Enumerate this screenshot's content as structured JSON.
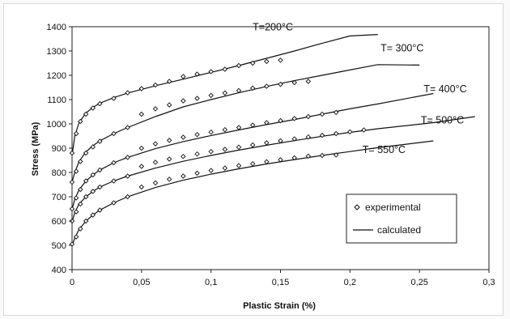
{
  "chart_data": {
    "type": "line",
    "xlabel": "Plastic Strain (%)",
    "ylabel": "Stress (MPa)",
    "xlim": [
      0,
      0.3
    ],
    "ylim": [
      400,
      1400
    ],
    "x_ticks": [
      0,
      0.05,
      0.1,
      0.15,
      0.2,
      0.25,
      0.3
    ],
    "x_tick_labels": [
      "0",
      "0,05",
      "0,1",
      "0,15",
      "0,2",
      "0,25",
      "0,3"
    ],
    "y_ticks": [
      400,
      500,
      600,
      700,
      800,
      900,
      1000,
      1100,
      1200,
      1300,
      1400
    ],
    "y_tick_labels": [
      "400",
      "500",
      "600",
      "700",
      "800",
      "900",
      "1000",
      "1100",
      "1200",
      "1300",
      "1400"
    ],
    "grid": false,
    "legend": {
      "placement": "bottom-right",
      "entries": [
        {
          "label": "experimental",
          "marker": "diamond"
        },
        {
          "label": "calculated",
          "marker": "line"
        }
      ]
    },
    "series": [
      {
        "name": "T=200°C",
        "calculated": {
          "x": [
            0,
            0.002,
            0.005,
            0.01,
            0.015,
            0.02,
            0.03,
            0.04,
            0.06,
            0.08,
            0.1,
            0.12,
            0.14,
            0.16,
            0.18,
            0.2,
            0.22
          ],
          "y": [
            870,
            950,
            1005,
            1045,
            1068,
            1085,
            1108,
            1127,
            1157,
            1184,
            1212,
            1240,
            1270,
            1300,
            1332,
            1362,
            1368
          ]
        },
        "experimental": {
          "x": [
            0,
            0.003,
            0.006,
            0.01,
            0.015,
            0.02,
            0.03,
            0.04,
            0.05,
            0.06,
            0.07,
            0.08,
            0.09,
            0.1,
            0.11,
            0.12,
            0.13,
            0.14,
            0.15
          ],
          "y": [
            880,
            960,
            1010,
            1040,
            1065,
            1083,
            1105,
            1128,
            1145,
            1160,
            1175,
            1195,
            1205,
            1215,
            1225,
            1240,
            1250,
            1257,
            1262
          ]
        }
      },
      {
        "name": "T= 300°C",
        "calculated": {
          "x": [
            0,
            0.002,
            0.005,
            0.01,
            0.015,
            0.02,
            0.03,
            0.04,
            0.06,
            0.08,
            0.1,
            0.12,
            0.14,
            0.16,
            0.18,
            0.2,
            0.22,
            0.25
          ],
          "y": [
            760,
            800,
            845,
            885,
            910,
            930,
            960,
            985,
            1030,
            1070,
            1100,
            1128,
            1154,
            1178,
            1200,
            1222,
            1244,
            1242
          ]
        },
        "experimental": {
          "x": [
            0,
            0.003,
            0.006,
            0.01,
            0.015,
            0.02,
            0.03,
            0.04,
            0.05,
            0.06,
            0.07,
            0.08,
            0.09,
            0.1,
            0.11,
            0.12,
            0.13,
            0.14,
            0.15,
            0.16,
            0.17
          ],
          "y": [
            760,
            805,
            845,
            880,
            905,
            928,
            960,
            985,
            1040,
            1062,
            1078,
            1095,
            1105,
            1117,
            1127,
            1137,
            1147,
            1155,
            1163,
            1170,
            1175
          ]
        }
      },
      {
        "name": "T= 400°C",
        "calculated": {
          "x": [
            0,
            0.002,
            0.005,
            0.01,
            0.015,
            0.02,
            0.03,
            0.04,
            0.06,
            0.08,
            0.1,
            0.12,
            0.14,
            0.16,
            0.18,
            0.2,
            0.22,
            0.26
          ],
          "y": [
            648,
            690,
            728,
            765,
            790,
            810,
            840,
            862,
            898,
            927,
            952,
            975,
            997,
            1018,
            1040,
            1062,
            1082,
            1125
          ]
        },
        "experimental": {
          "x": [
            0,
            0.003,
            0.006,
            0.01,
            0.015,
            0.02,
            0.03,
            0.04,
            0.05,
            0.06,
            0.07,
            0.08,
            0.09,
            0.1,
            0.11,
            0.12,
            0.13,
            0.14,
            0.15,
            0.16,
            0.17,
            0.18,
            0.19
          ],
          "y": [
            650,
            695,
            730,
            765,
            790,
            810,
            840,
            862,
            900,
            918,
            932,
            945,
            956,
            966,
            976,
            985,
            995,
            1005,
            1013,
            1022,
            1030,
            1040,
            1047
          ]
        }
      },
      {
        "name": "T= 500°C",
        "calculated": {
          "x": [
            0,
            0.002,
            0.005,
            0.01,
            0.015,
            0.02,
            0.03,
            0.04,
            0.06,
            0.08,
            0.1,
            0.12,
            0.14,
            0.16,
            0.18,
            0.2,
            0.22,
            0.26,
            0.29
          ],
          "y": [
            595,
            635,
            670,
            700,
            722,
            740,
            765,
            785,
            818,
            846,
            870,
            892,
            912,
            931,
            949,
            965,
            980,
            1005,
            1030
          ]
        },
        "experimental": {
          "x": [
            0,
            0.003,
            0.006,
            0.01,
            0.015,
            0.02,
            0.03,
            0.04,
            0.05,
            0.06,
            0.07,
            0.08,
            0.09,
            0.1,
            0.11,
            0.12,
            0.13,
            0.14,
            0.15,
            0.16,
            0.17,
            0.18,
            0.19,
            0.2,
            0.21
          ],
          "y": [
            600,
            638,
            670,
            700,
            722,
            740,
            765,
            785,
            825,
            842,
            855,
            866,
            876,
            886,
            895,
            904,
            913,
            922,
            930,
            938,
            946,
            953,
            960,
            967,
            975
          ]
        }
      },
      {
        "name": "T= 550°C",
        "calculated": {
          "x": [
            0,
            0.002,
            0.005,
            0.01,
            0.015,
            0.02,
            0.03,
            0.04,
            0.06,
            0.08,
            0.1,
            0.12,
            0.14,
            0.16,
            0.18,
            0.2,
            0.22,
            0.26
          ],
          "y": [
            500,
            530,
            565,
            600,
            625,
            645,
            675,
            700,
            738,
            768,
            793,
            815,
            835,
            853,
            870,
            886,
            902,
            930
          ]
        },
        "experimental": {
          "x": [
            0,
            0.003,
            0.006,
            0.01,
            0.015,
            0.02,
            0.03,
            0.04,
            0.05,
            0.06,
            0.07,
            0.08,
            0.09,
            0.1,
            0.11,
            0.12,
            0.13,
            0.14,
            0.15,
            0.16,
            0.17,
            0.18,
            0.19
          ],
          "y": [
            505,
            535,
            568,
            600,
            625,
            645,
            675,
            700,
            740,
            757,
            772,
            785,
            797,
            808,
            818,
            828,
            836,
            844,
            852,
            860,
            867,
            870,
            872
          ]
        }
      }
    ]
  }
}
